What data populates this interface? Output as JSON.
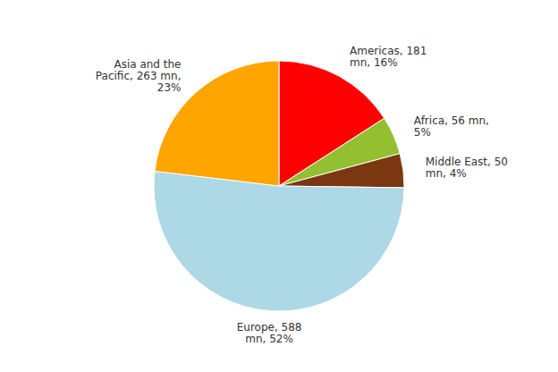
{
  "chart_data": {
    "type": "pie",
    "values": [
      181,
      56,
      50,
      588,
      263
    ],
    "value_labels": [
      "Americas, 181\nmn, 16%",
      "Africa, 56 mn,\n5%",
      "Middle East, 50\nmn, 4%",
      "Europe, 588\nmn, 52%",
      "Asia and the\nPacific, 263 mn,\n23%"
    ],
    "colors": [
      "#FF0000",
      "#92C030",
      "#7B3810",
      "#ADD8E6",
      "#FFA500"
    ],
    "data_labels": true
  }
}
